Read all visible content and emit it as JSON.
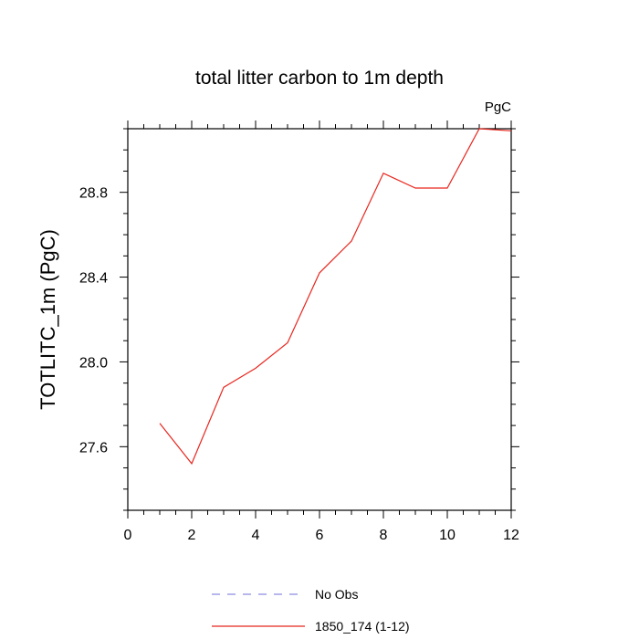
{
  "chart_data": {
    "type": "line",
    "title": "total litter carbon to 1m depth",
    "units_label": "PgC",
    "ylabel": "TOTLITC_1m  (PgC)",
    "xlabel": "",
    "xlim": [
      0,
      12
    ],
    "ylim": [
      27.3,
      29.1
    ],
    "x_ticks": [
      0,
      2,
      4,
      6,
      8,
      10,
      12
    ],
    "y_ticks": [
      27.6,
      28.0,
      28.4,
      28.8
    ],
    "y_tick_labels": [
      "27.6",
      "28.0",
      "28.4",
      "28.8"
    ],
    "grid": false,
    "series": [
      {
        "name": "1850_174 (1-12)",
        "color": "#e8261e",
        "dash": "solid",
        "x": [
          1,
          2,
          3,
          4,
          5,
          6,
          7,
          8,
          9,
          10,
          11,
          12
        ],
        "values": [
          27.71,
          27.52,
          27.88,
          27.97,
          28.09,
          28.42,
          28.57,
          28.89,
          28.82,
          28.82,
          29.1,
          29.09
        ]
      }
    ],
    "legend": [
      {
        "label": "No Obs",
        "color": "#8c8ce0",
        "dash": "dashed"
      },
      {
        "label": "1850_174 (1-12)",
        "color": "#e8261e",
        "dash": "solid"
      }
    ],
    "legend_position": "bottom-center"
  }
}
